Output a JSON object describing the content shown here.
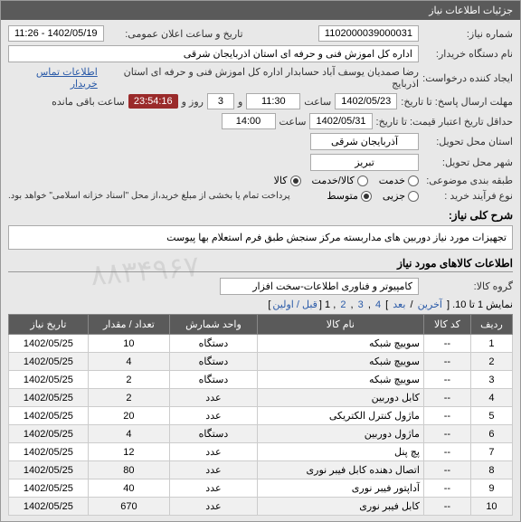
{
  "header": {
    "title": "جزئیات اطلاعات نیاز"
  },
  "fields": {
    "need_number_label": "شماره نیاز:",
    "need_number": "1102000039000031",
    "public_announce_label": "تاریخ و ساعت اعلان عمومی:",
    "public_announce": "1402/05/19 - 11:26",
    "buyer_org_label": "نام دستگاه خریدار:",
    "buyer_org": "اداره کل اموزش فنی و حرفه ای استان اذربایجان شرقی",
    "requester_label": "ایجاد کننده درخواست:",
    "requester": "رضا صمدیان یوسف آباد حسابدار اداره کل اموزش فنی و حرفه ای استان اذربایج",
    "buyer_contact": "اطلاعات تماس خریدار",
    "deadline_label": "مهلت ارسال پاسخ: تا تاریخ:",
    "deadline_date": "1402/05/23",
    "time_label": "ساعت",
    "deadline_time": "11:30",
    "and_label": "و",
    "days": "3",
    "day_and_label": "روز و",
    "remaining_time": "23:54:16",
    "remaining_label": "ساعت باقی مانده",
    "price_validity_label": "حداقل تاریخ اعتبار قیمت: تا تاریخ:",
    "price_validity_date": "1402/05/31",
    "price_validity_time": "14:00",
    "province_label": "استان محل تحویل:",
    "province": "آذربایجان شرقی",
    "city_label": "شهر محل تحویل:",
    "city": "تبریز",
    "category_label": "طبقه بندی موضوعی:",
    "cat_service": "خدمت",
    "cat_goods_service": "کالا/خدمت",
    "cat_goods": "کالا",
    "purchase_type_label": "نوع فرآیند خرید :",
    "type_partial": "جزیی",
    "type_medium": "متوسط",
    "payment_note": "پرداخت تمام یا بخشی از مبلغ خرید،از محل \"اسناد خزانه اسلامی\" خواهد بود."
  },
  "summary": {
    "title": "شرح کلی نیاز:",
    "text": "تجهیزات مورد نیاز دوربین های مداربسته مرکز سنجش طبق فرم استعلام بها پیوست"
  },
  "goods_section": {
    "title": "اطلاعات کالاهای مورد نیاز",
    "group_label": "گروه کالا:",
    "group_value": "کامپیوتر و فناوری اطلاعات-سخت افزار",
    "pagination_text": "نمایش 1 تا 10.",
    "pagination_last": "آخرین",
    "pagination_next": "بعد",
    "pagination_pages": [
      "4",
      "3",
      "2",
      "1"
    ],
    "pagination_first": "قبل / اولین"
  },
  "table": {
    "headers": {
      "row": "ردیف",
      "code": "کد کالا",
      "name": "نام کالا",
      "unit": "واحد شمارش",
      "qty": "تعداد / مقدار",
      "date": "تاریخ نیاز"
    },
    "rows": [
      {
        "n": "1",
        "code": "--",
        "name": "سوییچ شبکه",
        "unit": "دستگاه",
        "qty": "10",
        "date": "1402/05/25"
      },
      {
        "n": "2",
        "code": "--",
        "name": "سوییچ شبکه",
        "unit": "دستگاه",
        "qty": "4",
        "date": "1402/05/25"
      },
      {
        "n": "3",
        "code": "--",
        "name": "سوییچ شبکه",
        "unit": "دستگاه",
        "qty": "2",
        "date": "1402/05/25"
      },
      {
        "n": "4",
        "code": "--",
        "name": "کابل دوربین",
        "unit": "عدد",
        "qty": "2",
        "date": "1402/05/25"
      },
      {
        "n": "5",
        "code": "--",
        "name": "ماژول کنترل الکتریکی",
        "unit": "عدد",
        "qty": "20",
        "date": "1402/05/25"
      },
      {
        "n": "6",
        "code": "--",
        "name": "ماژول دوربین",
        "unit": "دستگاه",
        "qty": "4",
        "date": "1402/05/25"
      },
      {
        "n": "7",
        "code": "--",
        "name": "پچ پنل",
        "unit": "عدد",
        "qty": "12",
        "date": "1402/05/25"
      },
      {
        "n": "8",
        "code": "--",
        "name": "اتصال دهنده کابل فیبر نوری",
        "unit": "عدد",
        "qty": "80",
        "date": "1402/05/25"
      },
      {
        "n": "9",
        "code": "--",
        "name": "آداپتور فیبر نوری",
        "unit": "عدد",
        "qty": "40",
        "date": "1402/05/25"
      },
      {
        "n": "10",
        "code": "--",
        "name": "کابل فیبر نوری",
        "unit": "عدد",
        "qty": "670",
        "date": "1402/05/25"
      }
    ]
  },
  "watermark": "۸۸۳۴۹۶۷"
}
